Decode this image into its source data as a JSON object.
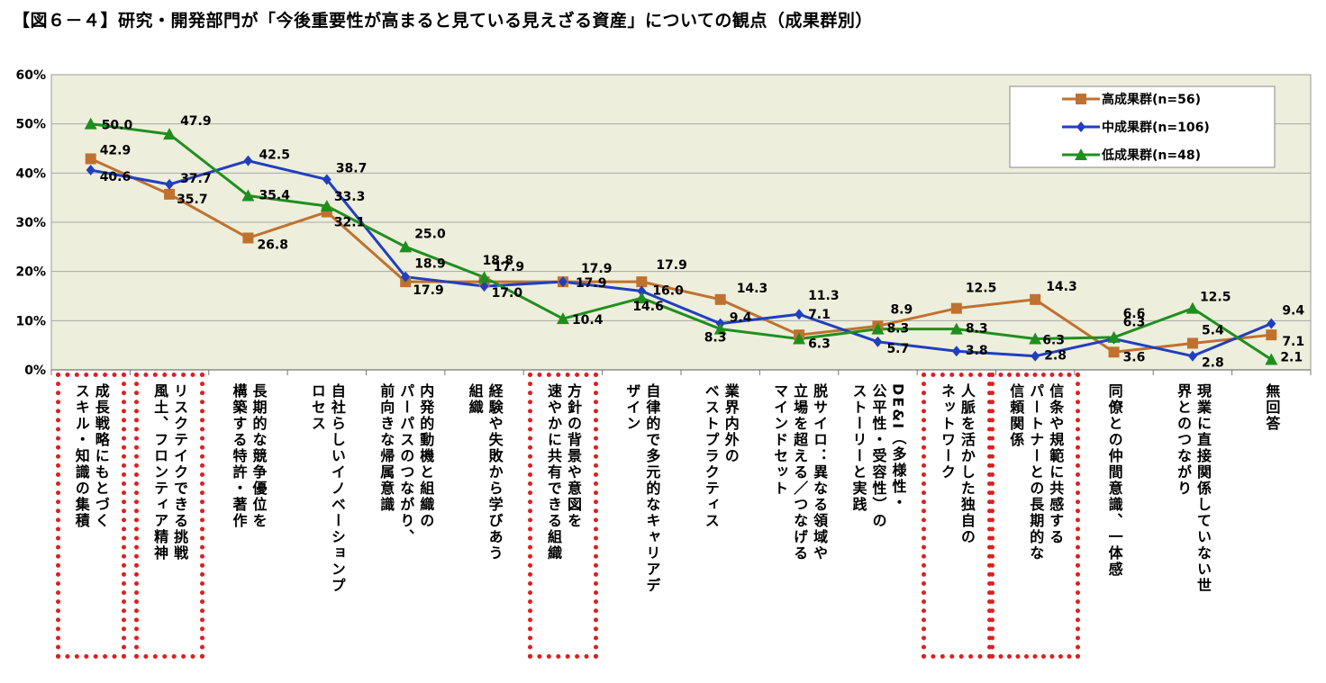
{
  "chart_data": {
    "type": "line",
    "title": "【図６－４】研究・開発部門が「今後重要性が高まると見ている見えざる資産」についての観点（成果群別）",
    "ylim": [
      0,
      60
    ],
    "yticks": [
      "0%",
      "10%",
      "20%",
      "30%",
      "40%",
      "50%",
      "60%"
    ],
    "legend_position": "top-right",
    "categories": [
      "成長戦略にもとづく\nスキル・知識の集積",
      "リスクテイクできる挑戦\n風土、フロンティア精神",
      "長期的な競争優位を\n構築する特許・著作",
      "自社らしいイノベーションプ\nロセス",
      "内発的動機と組織の\nパーパスのつながり、\n前向きな帰属意識",
      "経験や失敗から学びあう\n組織",
      "方針の背景や意図を\n速やかに共有できる組織",
      "自律的で多元的なキャリアデ\nザイン",
      "業界内外の\nベストプラクティス",
      "脱サイロ：異なる領域や\n立場を超える／つなげる\nマインドセット",
      "DE&I（多様性・\n公平性・受容性）の\nストーリーと実践",
      "人脈を活かした独自の\nネットワーク",
      "信条や規範に共感する\nパートナーとの長期的な\n信頼関係",
      "同僚との仲間意識、一体感",
      "現業に直接関係していない世\n界とのつながり",
      "無回答"
    ],
    "series": [
      {
        "name": "高成果群(n=56)",
        "color": "#c0712f",
        "marker": "square",
        "values": [
          42.9,
          35.7,
          26.8,
          32.1,
          17.9,
          17.9,
          17.9,
          17.9,
          14.3,
          7.1,
          8.9,
          12.5,
          14.3,
          3.6,
          5.4,
          7.1
        ],
        "labels": [
          "42.9",
          "35.7",
          "26.8",
          "32.1",
          "17.9",
          "17.9",
          "17.9",
          "17.9",
          "14.3",
          "7.1",
          "8.9",
          "12.5",
          "14.3",
          "3.6",
          "5.4",
          "7.1"
        ]
      },
      {
        "name": "中成果群(n=106)",
        "color": "#1f3fbf",
        "marker": "diamond",
        "values": [
          40.6,
          37.7,
          42.5,
          38.7,
          18.9,
          17.0,
          17.9,
          16.0,
          9.4,
          11.3,
          5.7,
          3.8,
          2.8,
          6.3,
          2.8,
          9.4
        ],
        "labels": [
          "40.6",
          "37.7",
          "42.5",
          "38.7",
          "18.9",
          "17.0",
          "17.9",
          "16.0",
          "9.4",
          "11.3",
          "5.7",
          "3.8",
          "2.8",
          "6.3",
          "2.8",
          "9.4"
        ]
      },
      {
        "name": "低成果群(n=48)",
        "color": "#1e8f1e",
        "marker": "triangle",
        "values": [
          50.0,
          47.9,
          35.4,
          33.3,
          25.0,
          18.8,
          10.4,
          14.6,
          8.3,
          6.3,
          8.3,
          8.3,
          6.3,
          6.6,
          12.5,
          2.1
        ],
        "labels": [
          "50.0",
          "47.9",
          "35.4",
          "33.3",
          "25.0",
          "18.8",
          "10.4",
          "14.6",
          "8.3",
          "6.3",
          "8.3",
          "8.3",
          "6.3",
          "6.6",
          "12.5",
          "2.1"
        ]
      }
    ],
    "highlighted_categories": [
      0,
      1,
      6,
      11,
      12
    ],
    "plot_background": "#eeeedc",
    "grid": true
  }
}
